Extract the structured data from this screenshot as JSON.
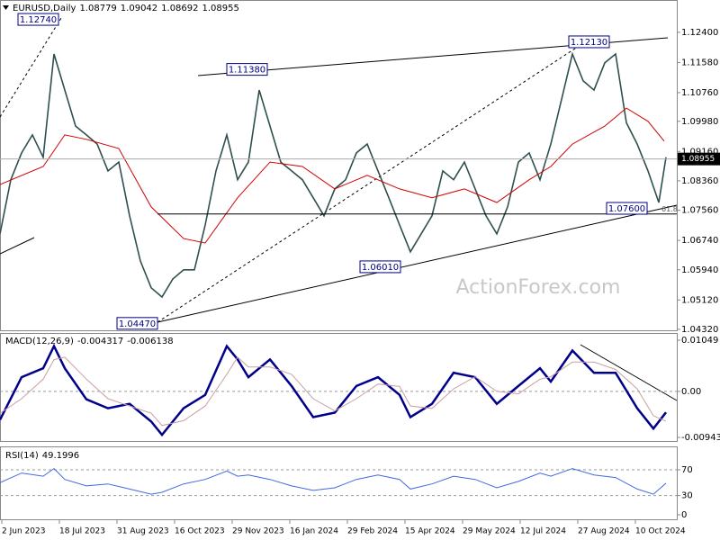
{
  "chart_data": [
    {
      "type": "line",
      "title": "EURUSD,Daily",
      "ohlc": [
        1.08779,
        1.09042,
        1.08692,
        1.08955
      ],
      "watermark": "ActionForex.com",
      "xlim": [
        0,
        376
      ],
      "ylim": [
        1.0427,
        1.1328
      ],
      "yticks": [
        {
          "value": 1.124,
          "label": "1.12400"
        },
        {
          "value": 1.1158,
          "label": "1.11580"
        },
        {
          "value": 1.1076,
          "label": "1.10760"
        },
        {
          "value": 1.0998,
          "label": "1.09980"
        },
        {
          "value": 1.0916,
          "label": "1.09160"
        },
        {
          "value": 1.0836,
          "label": "1.08360"
        },
        {
          "value": 1.0756,
          "label": "1.07560"
        },
        {
          "value": 1.0674,
          "label": "1.06740"
        },
        {
          "value": 1.0594,
          "label": "1.05940"
        },
        {
          "value": 1.0512,
          "label": "1.05120"
        },
        {
          "value": 1.0432,
          "label": "1.04320"
        }
      ],
      "series": [
        {
          "color": "#2f4f4f",
          "x": [
            0,
            6,
            12,
            18,
            24,
            30,
            36,
            42,
            48,
            54,
            60,
            66,
            72,
            78,
            84,
            90,
            96,
            102,
            108,
            114,
            120,
            126,
            132,
            138,
            144,
            150,
            156,
            162,
            168,
            174,
            180,
            186,
            192,
            198,
            204,
            210,
            216,
            222,
            228,
            234,
            240,
            246,
            252,
            258,
            264,
            270,
            276,
            282,
            288,
            294,
            300,
            306,
            312,
            318,
            324,
            330,
            336,
            342,
            348,
            354,
            360,
            366,
            370
          ],
          "values": [
            1.0692,
            1.0839,
            1.0912,
            1.0961,
            1.09,
            1.1181,
            1.1083,
            1.0985,
            1.0961,
            1.0936,
            1.0863,
            1.0887,
            1.0741,
            1.0618,
            1.0545,
            1.052,
            1.0569,
            1.0594,
            1.0594,
            1.0716,
            1.0863,
            1.0961,
            1.0839,
            1.0887,
            1.1083,
            1.0985,
            1.0887,
            1.0863,
            1.0839,
            1.079,
            1.0741,
            1.0814,
            1.0839,
            1.0912,
            1.0936,
            1.0863,
            1.079,
            1.0716,
            1.0643,
            1.0692,
            1.0741,
            1.0863,
            1.0839,
            1.0887,
            1.0814,
            1.0741,
            1.0692,
            1.0765,
            1.0887,
            1.0912,
            1.0839,
            1.0936,
            1.1058,
            1.1181,
            1.1108,
            1.1083,
            1.1157,
            1.1181,
            1.0994,
            1.0936,
            1.0863,
            1.0777,
            1.09
          ]
        },
        {
          "color": "#d00000",
          "x": [
            0,
            24,
            36,
            48,
            66,
            84,
            102,
            114,
            132,
            150,
            168,
            186,
            204,
            222,
            240,
            258,
            276,
            294,
            306,
            318,
            336,
            348,
            360,
            369
          ],
          "values": [
            1.0826,
            1.0875,
            1.0961,
            1.0949,
            1.0924,
            1.0765,
            1.0679,
            1.0667,
            1.079,
            1.0887,
            1.0875,
            1.0814,
            1.0851,
            1.0814,
            1.079,
            1.0814,
            1.0777,
            1.0839,
            1.0875,
            1.0936,
            1.0985,
            1.1034,
            1.0998,
            1.0944
          ]
        }
      ],
      "annotations": [
        {
          "label": "1.12740",
          "value": 1.1274,
          "x": 33
        },
        {
          "label": "1.11380",
          "value": 1.1138,
          "x": 149
        },
        {
          "label": "1.12130",
          "value": 1.1213,
          "x": 339
        },
        {
          "label": "1.07600",
          "value": 1.076,
          "x": 360
        },
        {
          "label": "1.06010",
          "value": 1.0601,
          "x": 223
        },
        {
          "label": "1.04470",
          "value": 1.0447,
          "x": 88
        }
      ],
      "fib_level": {
        "ratio": 61.8,
        "price": 1.0746
      }
    },
    {
      "type": "line",
      "title": "MACD(12,26,9)",
      "last_values": [
        -0.004317,
        -0.006138
      ],
      "xlim": [
        0,
        376
      ],
      "ylim": [
        -0.01018,
        0.01197
      ],
      "yticks": [
        0.01049,
        {
          "value": 0,
          "label": "0.00"
        },
        -0.009435
      ],
      "reference_lines": [
        0
      ],
      "series": [
        {
          "color": "#00008b",
          "x": [
            0,
            12,
            24,
            30,
            36,
            48,
            60,
            72,
            84,
            90,
            102,
            114,
            126,
            132,
            138,
            150,
            162,
            174,
            186,
            198,
            210,
            222,
            228,
            240,
            252,
            264,
            276,
            288,
            300,
            306,
            318,
            330,
            342,
            354,
            363,
            370
          ],
          "values": [
            -0.00582,
            0.00291,
            0.00473,
            0.00928,
            0.00473,
            -0.00164,
            -0.00346,
            -0.00255,
            -0.00619,
            -0.00892,
            -0.00346,
            -0.00073,
            0.00928,
            0.00655,
            0.00291,
            0.00655,
            0.00109,
            -0.00528,
            -0.00437,
            0.00109,
            0.00291,
            -0.00073,
            -0.00528,
            -0.00255,
            0.00382,
            0.00291,
            -0.00255,
            0.00109,
            0.00473,
            0.002,
            0.00837,
            0.00382,
            0.00382,
            -0.00346,
            -0.00764,
            -0.004317
          ]
        },
        {
          "color": "#c8a0a0",
          "x": [
            0,
            12,
            24,
            30,
            36,
            48,
            60,
            72,
            84,
            90,
            102,
            114,
            126,
            132,
            138,
            150,
            162,
            174,
            186,
            198,
            210,
            222,
            228,
            240,
            252,
            264,
            276,
            288,
            300,
            306,
            318,
            330,
            342,
            354,
            363,
            370
          ],
          "values": [
            -0.0045,
            -0.0015,
            0.0025,
            0.0065,
            0.007,
            0.0025,
            -0.0015,
            -0.003,
            -0.0045,
            -0.007,
            -0.006,
            -0.003,
            0.0035,
            0.007,
            0.005,
            0.005,
            0.0035,
            -0.0015,
            -0.004,
            -0.0015,
            0.0015,
            0.001,
            -0.003,
            -0.0035,
            0.0005,
            0.003,
            0,
            -0.0005,
            0.0025,
            0.003,
            0.006,
            0.006,
            0.0045,
            0.0005,
            -0.005,
            -0.006138
          ]
        }
      ]
    },
    {
      "type": "line",
      "title": "RSI(14)",
      "last_value": 49.1996,
      "xlim": [
        0,
        376
      ],
      "ylim": [
        -7,
        105
      ],
      "yticks": [
        70,
        30,
        0
      ],
      "reference_lines": [
        30,
        70
      ],
      "xticks": [
        {
          "value": 1,
          "label": "2 Jun 2023"
        },
        {
          "value": 33,
          "label": "18 Jul 2023"
        },
        {
          "value": 65,
          "label": "31 Aug 2023"
        },
        {
          "value": 97,
          "label": "16 Oct 2023"
        },
        {
          "value": 129,
          "label": "29 Nov 2023"
        },
        {
          "value": 161,
          "label": "16 Jan 2024"
        },
        {
          "value": 193,
          "label": "29 Feb 2024"
        },
        {
          "value": 225,
          "label": "15 Apr 2024"
        },
        {
          "value": 257,
          "label": "29 May 2024"
        },
        {
          "value": 289,
          "label": "12 Jul 2024"
        },
        {
          "value": 321,
          "label": "27 Aug 2024"
        },
        {
          "value": 353,
          "label": "10 Oct 2024"
        }
      ],
      "series": [
        {
          "color": "#4169e1",
          "x": [
            0,
            12,
            24,
            30,
            36,
            48,
            60,
            72,
            84,
            90,
            102,
            114,
            126,
            132,
            138,
            150,
            162,
            174,
            186,
            198,
            210,
            222,
            228,
            240,
            252,
            264,
            276,
            288,
            300,
            306,
            318,
            330,
            342,
            354,
            363,
            370
          ],
          "values": [
            50,
            65,
            60,
            72,
            55,
            45,
            48,
            40,
            32,
            35,
            48,
            55,
            68,
            60,
            62,
            55,
            45,
            38,
            42,
            55,
            62,
            55,
            40,
            48,
            60,
            55,
            42,
            52,
            65,
            60,
            72,
            62,
            58,
            40,
            32,
            49.1996
          ]
        }
      ]
    }
  ]
}
